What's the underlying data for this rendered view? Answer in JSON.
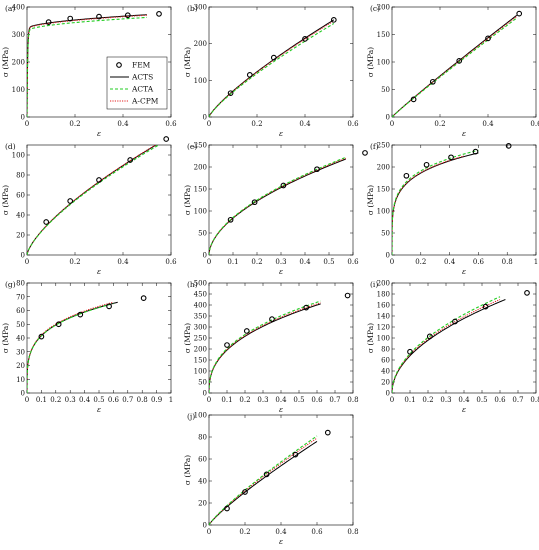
{
  "figure": {
    "legend": [
      {
        "label": "FEM",
        "style": "circle",
        "color": "#000000"
      },
      {
        "label": "ACTS",
        "style": "solid",
        "color": "#000000"
      },
      {
        "label": "ACTA",
        "style": "dashed",
        "color": "#22cc22"
      },
      {
        "label": "A-CPM",
        "style": "dotted",
        "color": "#e02020"
      }
    ],
    "colors": {
      "acts": "#000000",
      "acta": "#22cc22",
      "acpm": "#e02020",
      "fem": "#000000"
    }
  },
  "chart_data": [
    {
      "type": "line",
      "panel_label": "(a)",
      "xlabel": "ε",
      "ylabel": "σ (MPa)",
      "xlim": [
        0,
        0.6
      ],
      "ylim": [
        0,
        400
      ],
      "xticks": [
        0,
        0.2,
        0.4,
        0.6
      ],
      "yticks": [
        0,
        100,
        200,
        300,
        400
      ],
      "n": 0.05,
      "sat": 0,
      "fem": {
        "x": [
          0.09,
          0.18,
          0.3,
          0.42,
          0.55
        ],
        "y": [
          345,
          358,
          365,
          370,
          375
        ]
      },
      "acts": {
        "xmax": 0.5,
        "ymax": 372
      },
      "acta": {
        "xmax": 0.5,
        "ymax": 362
      },
      "acpm": {
        "xmax": 0.5,
        "ymax": 370
      },
      "legend_here": true
    },
    {
      "type": "line",
      "panel_label": "(b)",
      "xlabel": "ε",
      "ylabel": "σ (MPa)",
      "xlim": [
        0,
        0.6
      ],
      "ylim": [
        0,
        300
      ],
      "xticks": [
        0,
        0.2,
        0.4,
        0.6
      ],
      "yticks": [
        0,
        100,
        200,
        300
      ],
      "n": 0.8,
      "sat": 0,
      "fem": {
        "x": [
          0.09,
          0.17,
          0.27,
          0.4,
          0.52
        ],
        "y": [
          65,
          115,
          162,
          213,
          265
        ]
      },
      "acts": {
        "xmax": 0.52,
        "ymax": 265
      },
      "acta": {
        "xmax": 0.52,
        "ymax": 255
      },
      "acpm": {
        "xmax": 0.52,
        "ymax": 262
      }
    },
    {
      "type": "line",
      "panel_label": "(c)",
      "xlabel": "ε",
      "ylabel": "σ (MPa)",
      "xlim": [
        0,
        0.6
      ],
      "ylim": [
        0,
        200
      ],
      "xticks": [
        0,
        0.2,
        0.4,
        0.6
      ],
      "yticks": [
        0,
        50,
        100,
        150,
        200
      ],
      "n": 0.95,
      "sat": 0,
      "fem": {
        "x": [
          0.09,
          0.17,
          0.28,
          0.4,
          0.53
        ],
        "y": [
          32,
          64,
          102,
          143,
          188
        ]
      },
      "acts": {
        "xmax": 0.52,
        "ymax": 185
      },
      "acta": {
        "xmax": 0.52,
        "ymax": 180
      },
      "acpm": {
        "xmax": 0.52,
        "ymax": 183
      }
    },
    {
      "type": "line",
      "panel_label": "(d)",
      "xlabel": "ε",
      "ylabel": "σ (MPa)",
      "xlim": [
        0,
        0.6
      ],
      "ylim": [
        0,
        110
      ],
      "xticks": [
        0,
        0.2,
        0.4,
        0.6
      ],
      "yticks": [
        0,
        20,
        40,
        60,
        80,
        100
      ],
      "n": 0.7,
      "sat": 0,
      "fem": {
        "x": [
          0.08,
          0.18,
          0.3,
          0.43,
          0.58
        ],
        "y": [
          33,
          54,
          75,
          95,
          116
        ]
      },
      "acts": {
        "xmax": 0.58,
        "ymax": 116
      },
      "acta": {
        "xmax": 0.57,
        "ymax": 113
      },
      "acpm": {
        "xmax": 0.57,
        "ymax": 115
      }
    },
    {
      "type": "line",
      "panel_label": "(e)",
      "xlabel": "ε",
      "ylabel": "σ (MPa)",
      "xlim": [
        0,
        0.6
      ],
      "ylim": [
        0,
        250
      ],
      "xticks": [
        0,
        0.1,
        0.2,
        0.3,
        0.4,
        0.5,
        0.6
      ],
      "yticks": [
        0,
        50,
        100,
        150,
        200,
        250
      ],
      "n": 0.55,
      "sat": 0,
      "fem": {
        "x": [
          0.09,
          0.19,
          0.31,
          0.45,
          0.65
        ],
        "y": [
          80,
          120,
          158,
          195,
          232
        ]
      },
      "acts": {
        "xmax": 0.57,
        "ymax": 218
      },
      "acta": {
        "xmax": 0.57,
        "ymax": 222
      },
      "acpm": {
        "xmax": 0.57,
        "ymax": 220
      }
    },
    {
      "type": "line",
      "panel_label": "(f)",
      "xlabel": "ε",
      "ylabel": "σ (MPa)",
      "xlim": [
        0,
        1
      ],
      "ylim": [
        0,
        250
      ],
      "xticks": [
        0,
        0.2,
        0.4,
        0.6,
        0.8,
        1
      ],
      "yticks": [
        0,
        50,
        100,
        150,
        200,
        250
      ],
      "n": 0.2,
      "sat": 0,
      "fem": {
        "x": [
          0.1,
          0.24,
          0.41,
          0.58,
          0.81
        ],
        "y": [
          180,
          205,
          222,
          235,
          248
        ]
      },
      "acts": {
        "xmax": 0.6,
        "ymax": 232
      },
      "acta": {
        "xmax": 0.6,
        "ymax": 238
      },
      "acpm": {
        "xmax": 0.5,
        "ymax": 225
      }
    },
    {
      "type": "line",
      "panel_label": "(g)",
      "xlabel": "ε",
      "ylabel": "σ (MPa)",
      "xlim": [
        0,
        1
      ],
      "ylim": [
        0,
        80
      ],
      "xticks": [
        0,
        0.1,
        0.2,
        0.3,
        0.4,
        0.5,
        0.6,
        0.7,
        0.8,
        0.9,
        1
      ],
      "yticks": [
        0,
        10,
        20,
        30,
        40,
        50,
        60,
        70,
        80
      ],
      "n": 0.25,
      "sat": 0,
      "fem": {
        "x": [
          0.1,
          0.22,
          0.37,
          0.57,
          0.81
        ],
        "y": [
          41,
          50,
          57,
          63,
          69
        ]
      },
      "acts": {
        "xmax": 0.63,
        "ymax": 66
      },
      "acta": {
        "xmax": 0.6,
        "ymax": 65
      },
      "acpm": {
        "xmax": 0.6,
        "ymax": 66
      }
    },
    {
      "type": "line",
      "panel_label": "(h)",
      "xlabel": "ε",
      "ylabel": "σ (MPa)",
      "xlim": [
        0,
        0.8
      ],
      "ylim": [
        0,
        500
      ],
      "xticks": [
        0,
        0.1,
        0.2,
        0.3,
        0.4,
        0.5,
        0.6,
        0.7,
        0.8
      ],
      "yticks": [
        0,
        50,
        100,
        150,
        200,
        250,
        300,
        350,
        400,
        450,
        500
      ],
      "n": 0.4,
      "sat": 0,
      "fem": {
        "x": [
          0.1,
          0.21,
          0.35,
          0.54,
          0.77
        ],
        "y": [
          218,
          282,
          336,
          388,
          443
        ]
      },
      "acts": {
        "xmax": 0.62,
        "ymax": 405
      },
      "acta": {
        "xmax": 0.62,
        "ymax": 418
      },
      "acpm": {
        "xmax": 0.62,
        "ymax": 410
      }
    },
    {
      "type": "line",
      "panel_label": "(i)",
      "xlabel": "ε",
      "ylabel": "σ (MPa)",
      "xlim": [
        0,
        0.8
      ],
      "ylim": [
        0,
        200
      ],
      "xticks": [
        0,
        0.1,
        0.2,
        0.3,
        0.4,
        0.5,
        0.6,
        0.7,
        0.8
      ],
      "yticks": [
        0,
        20,
        40,
        60,
        80,
        100,
        120,
        140,
        160,
        180,
        200
      ],
      "n": 0.5,
      "sat": 0,
      "fem": {
        "x": [
          0.1,
          0.21,
          0.35,
          0.52,
          0.75
        ],
        "y": [
          75,
          103,
          130,
          157,
          182
        ]
      },
      "acts": {
        "xmax": 0.63,
        "ymax": 170
      },
      "acta": {
        "xmax": 0.6,
        "ymax": 175
      },
      "acpm": {
        "xmax": 0.6,
        "ymax": 170
      }
    },
    {
      "type": "line",
      "panel_label": "(j)",
      "xlabel": "ε",
      "ylabel": "σ (MPa)",
      "xlim": [
        0,
        0.8
      ],
      "ylim": [
        0,
        100
      ],
      "xticks": [
        0,
        0.2,
        0.4,
        0.6,
        0.8
      ],
      "yticks": [
        0,
        20,
        40,
        60,
        80,
        100
      ],
      "n": 0.85,
      "sat": 0,
      "fem": {
        "x": [
          0.1,
          0.2,
          0.32,
          0.48,
          0.66
        ],
        "y": [
          15,
          30,
          46,
          64,
          84
        ]
      },
      "acts": {
        "xmax": 0.6,
        "ymax": 76
      },
      "acta": {
        "xmax": 0.6,
        "ymax": 81
      },
      "acpm": {
        "xmax": 0.6,
        "ymax": 79
      }
    }
  ]
}
